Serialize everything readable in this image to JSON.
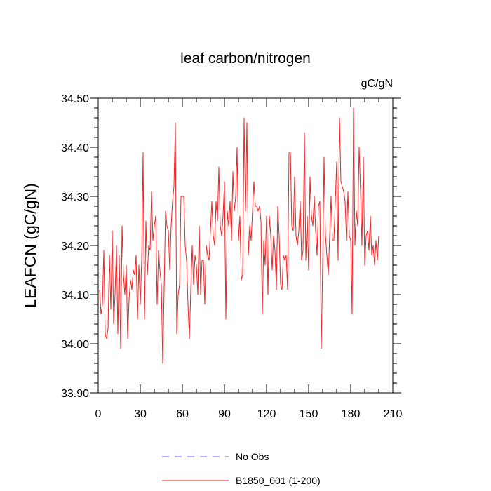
{
  "chart_data": {
    "type": "line",
    "title": "leaf carbon/nitrogen",
    "units_label": "gC/gN",
    "ylabel": "LEAFCN  (gC/gN)",
    "xlabel": "",
    "xlim": [
      0,
      210
    ],
    "ylim": [
      33.9,
      34.5
    ],
    "x_ticks": [
      0,
      30,
      60,
      90,
      120,
      150,
      180,
      210
    ],
    "x_tick_labels": [
      "0",
      "30",
      "60",
      "90",
      "120",
      "150",
      "180",
      "210"
    ],
    "y_ticks": [
      33.9,
      34.0,
      34.1,
      34.2,
      34.3,
      34.4,
      34.5
    ],
    "y_tick_labels": [
      "33.90",
      "34.00",
      "34.10",
      "34.20",
      "34.30",
      "34.40",
      "34.50"
    ],
    "grid": false,
    "legend_position": "bottom-center",
    "series": [
      {
        "name": "No Obs",
        "color": "#6666ff",
        "dash": "dashed",
        "values": []
      },
      {
        "name": "B1850_001 (1-200)",
        "color": "#ee2222",
        "dash": "solid",
        "x_start": 1,
        "values": [
          34.11,
          34.06,
          34.08,
          34.19,
          34.02,
          34.01,
          34.03,
          34.18,
          34.07,
          34.23,
          34.04,
          34.1,
          34.2,
          34.02,
          34.18,
          33.99,
          34.24,
          34.14,
          34.1,
          34.16,
          34.01,
          34.09,
          34.13,
          34.11,
          34.15,
          34.14,
          34.18,
          34.05,
          34.16,
          34.08,
          34.17,
          34.39,
          34.05,
          34.25,
          34.14,
          34.2,
          34.19,
          34.31,
          34.21,
          34.24,
          34.26,
          34.08,
          34.19,
          34.15,
          34.12,
          33.96,
          34.11,
          34.27,
          34.24,
          34.23,
          34.15,
          34.24,
          34.29,
          34.32,
          34.45,
          34.02,
          34.1,
          34.12,
          34.3,
          34.3,
          34.3,
          34.2,
          34.17,
          34.08,
          34.01,
          34.11,
          34.2,
          34.12,
          34.18,
          34.16,
          34.1,
          34.24,
          34.1,
          34.17,
          34.17,
          34.08,
          34.2,
          34.18,
          34.17,
          34.23,
          34.29,
          34.22,
          34.2,
          34.29,
          34.25,
          34.36,
          34.24,
          34.22,
          34.26,
          34.33,
          34.05,
          34.27,
          34.24,
          34.29,
          34.21,
          34.35,
          34.27,
          34.3,
          34.4,
          34.21,
          34.26,
          34.13,
          34.14,
          34.46,
          34.27,
          34.45,
          34.18,
          34.24,
          34.21,
          34.27,
          34.33,
          34.28,
          34.28,
          34.27,
          34.28,
          34.25,
          34.06,
          34.21,
          34.16,
          34.26,
          34.1,
          34.26,
          34.22,
          34.15,
          34.22,
          34.19,
          34.11,
          34.28,
          34.22,
          34.12,
          34.11,
          34.18,
          34.17,
          34.18,
          34.11,
          34.39,
          34.39,
          34.24,
          34.23,
          34.34,
          34.22,
          34.2,
          34.23,
          34.29,
          34.17,
          34.19,
          34.43,
          34.17,
          34.26,
          34.15,
          34.34,
          34.26,
          34.24,
          34.3,
          34.23,
          34.18,
          34.28,
          34.29,
          33.99,
          34.16,
          34.38,
          34.22,
          34.18,
          34.14,
          34.22,
          34.3,
          34.21,
          34.21,
          34.29,
          34.37,
          34.17,
          34.46,
          34.33,
          34.32,
          34.31,
          34.29,
          34.21,
          34.31,
          34.22,
          34.21,
          34.06,
          34.48,
          34.2,
          34.27,
          34.24,
          34.4,
          34.31,
          34.2,
          34.38,
          34.16,
          34.22,
          34.23,
          34.19,
          34.26,
          34.18,
          34.2,
          34.16,
          34.21,
          34.17,
          34.22
        ]
      }
    ]
  }
}
